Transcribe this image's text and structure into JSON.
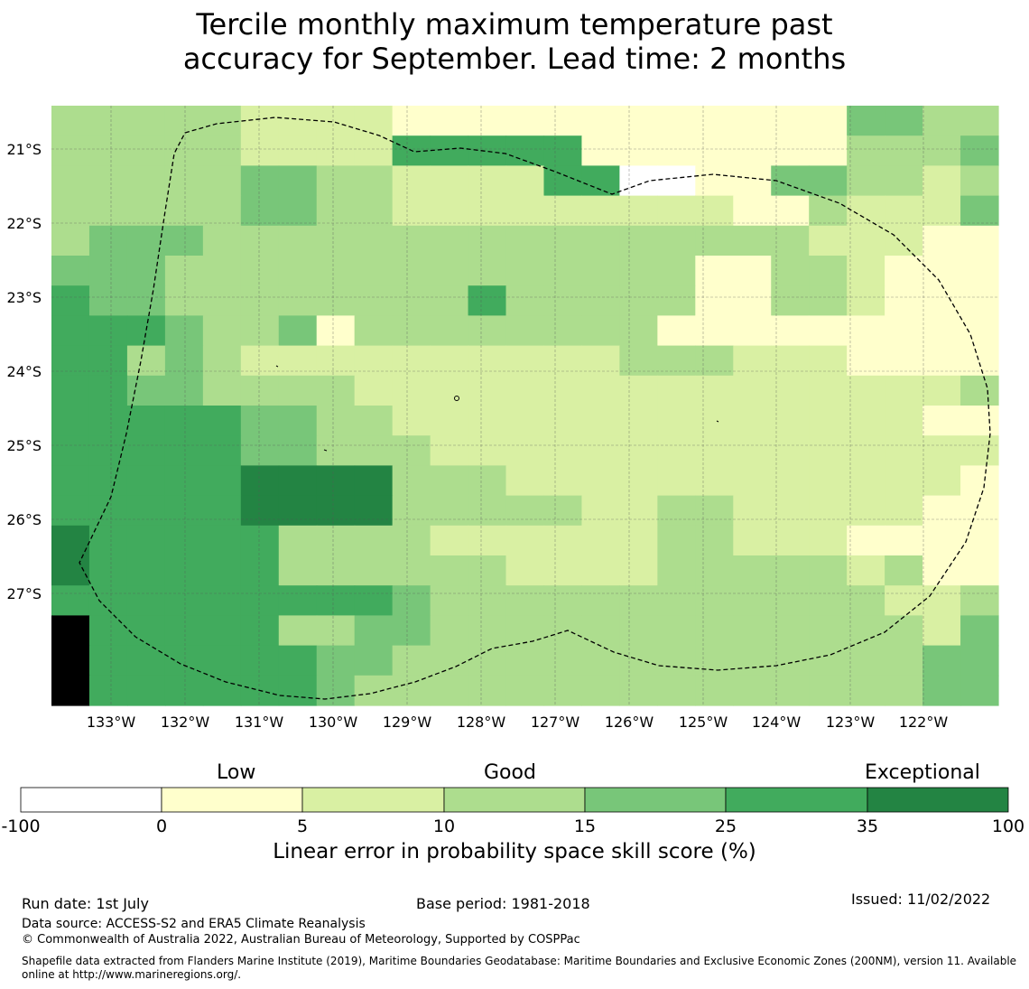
{
  "title_line1": "Tercile monthly maximum temperature past",
  "title_line2": "accuracy for September. Lead time: 2 months",
  "map": {
    "lon_labels": [
      "133°W",
      "132°W",
      "131°W",
      "130°W",
      "129°W",
      "128°W",
      "127°W",
      "126°W",
      "125°W",
      "124°W",
      "123°W",
      "122°W"
    ],
    "lat_labels": [
      "21°S",
      "22°S",
      "23°S",
      "24°S",
      "25°S",
      "26°S",
      "27°S"
    ],
    "cell_rows_top_to_bottom": [
      "3333322221111111111114433",
      "3333322225555511111113334",
      "3333344332222550011443323",
      "3333344332222222221132224",
      "3444333333333333333322211",
      "4443333333333333311332111",
      "5443333333353333311332111",
      "5554334133333333111111111",
      "5534322222222223332221111",
      "5544333322222222222222223",
      "5555544332222222222222211",
      "5555544333222222222222222",
      "5555566663332222222222221",
      "5555566663333322332222211",
      "6555553333222222332221111",
      "6555553333332222333332311",
      "5555555554333333333333223",
      "7555553344333333333333324",
      "7555555443333333333333344",
      "7555555433333333333333344"
    ],
    "colors": [
      "#ffffff",
      "#ffffcc",
      "#d9f0a3",
      "#addd8e",
      "#78c679",
      "#41ab5d",
      "#238443"
    ],
    "boundary": "EEZ"
  },
  "colorbar": {
    "categories": [
      "Low",
      "Good",
      "Exceptional"
    ],
    "ticks": [
      "-100",
      "0",
      "5",
      "10",
      "15",
      "25",
      "35",
      "100"
    ],
    "colors": [
      "#ffffff",
      "#ffffcc",
      "#d9f0a3",
      "#addd8e",
      "#78c679",
      "#41ab5d",
      "#238443"
    ],
    "label": "Linear error in probability space skill score (%)"
  },
  "footer": {
    "run_date": "Run date: 1st July",
    "base_period": "Base period: 1981-2018",
    "issued": "Issued: 11/02/2022",
    "data_source": "Data source: ACCESS-S2 and ERA5 Climate Reanalysis",
    "copyright": "© Commonwealth of Australia 2022, Australian Bureau of Meteorology, Supported by COSPPac",
    "shapefile": "Shapefile data extracted from Flanders Marine Institute (2019), Maritime Boundaries Geodatabase: Maritime Boundaries and Exclusive Economic Zones (200NM), version 11. Available online at http://www.marineregions.org/."
  }
}
